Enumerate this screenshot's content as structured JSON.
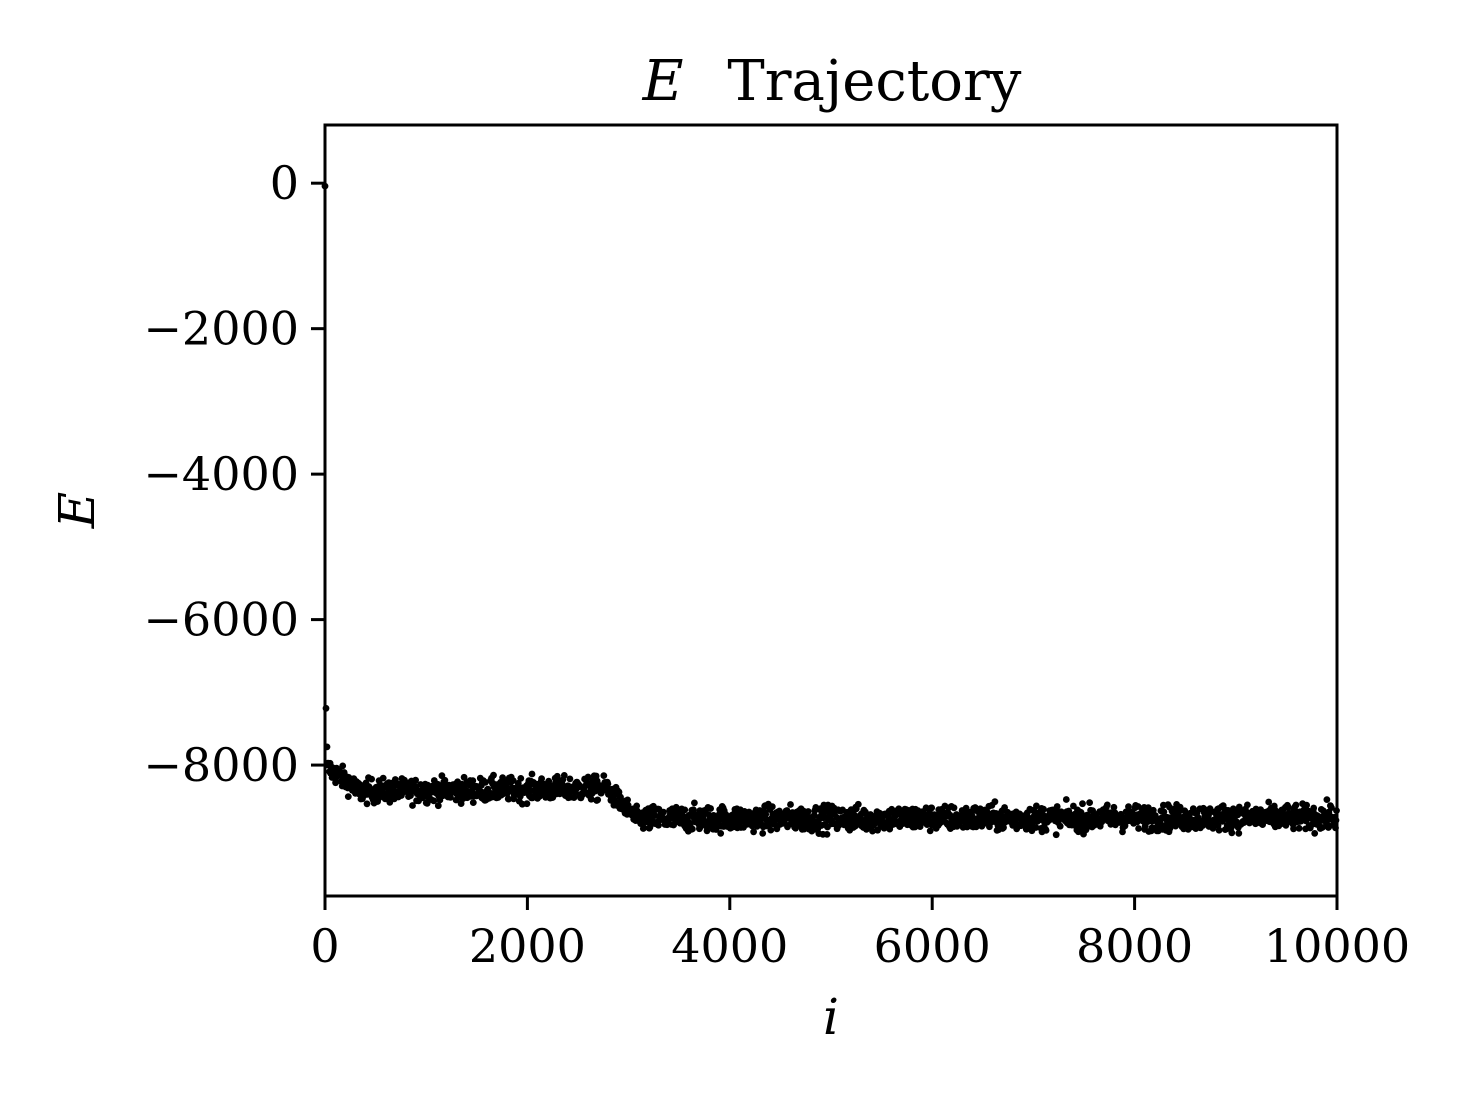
{
  "chart_data": {
    "type": "scatter",
    "title_math": "E",
    "title_text": "Trajectory",
    "xlabel": "i",
    "ylabel": "E",
    "xlim": [
      0,
      10000
    ],
    "ylim": [
      -9800,
      800
    ],
    "x_ticks": [
      0,
      2000,
      4000,
      6000,
      8000,
      10000
    ],
    "x_tick_labels": [
      "0",
      "2000",
      "4000",
      "6000",
      "8000",
      "10000"
    ],
    "y_ticks": [
      0,
      -2000,
      -4000,
      -6000,
      -8000
    ],
    "y_tick_labels": [
      "0",
      "−2000",
      "−4000",
      "−6000",
      "−8000"
    ],
    "grid": false,
    "marker_color": "#000000",
    "trajectory": {
      "n_points": 2000,
      "step": 5,
      "outliers": [
        {
          "x": 0,
          "y": -40
        },
        {
          "x": 10,
          "y": -7220
        },
        {
          "x": 20,
          "y": -7750
        }
      ],
      "segments": [
        {
          "x_start": 30,
          "x_end": 300,
          "mean_start": -8050,
          "mean_end": -8300,
          "spread": 260
        },
        {
          "x_start": 300,
          "x_end": 2800,
          "mean_start": -8360,
          "mean_end": -8320,
          "spread": 280
        },
        {
          "x_start": 2800,
          "x_end": 3100,
          "mean_start": -8350,
          "mean_end": -8760,
          "spread": 240
        },
        {
          "x_start": 3100,
          "x_end": 10000,
          "mean_start": -8740,
          "mean_end": -8720,
          "spread": 300
        }
      ]
    }
  }
}
